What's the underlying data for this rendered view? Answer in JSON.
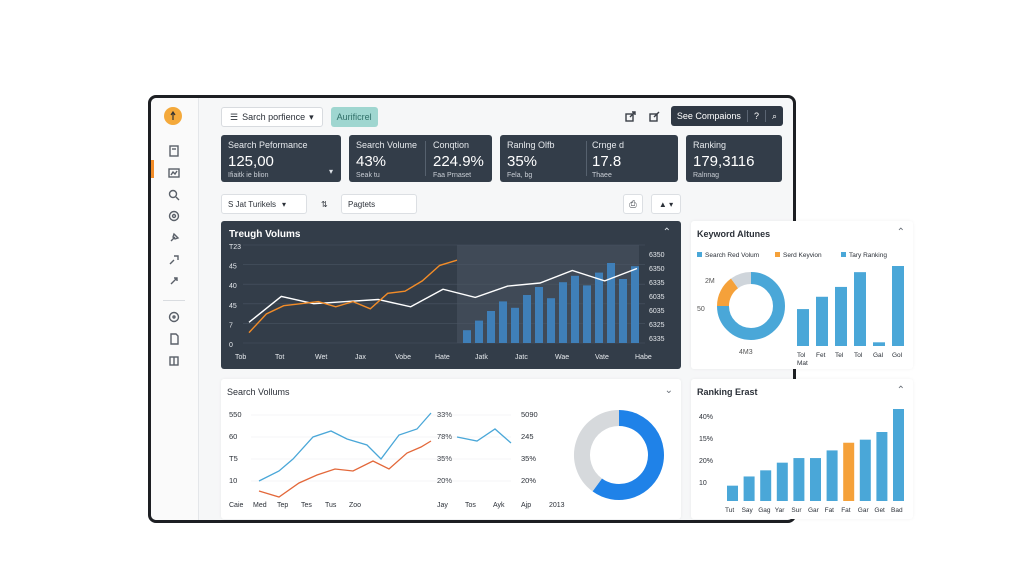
{
  "topbar": {
    "dropdown_label": "Sarch porfience",
    "pill_label": "Aurificrel",
    "compare_label": "See Compaions",
    "help_label": "?"
  },
  "kpis": [
    {
      "label": "Search Peformance",
      "value": "125,00",
      "sub": "Ifiaitk ie blion"
    },
    {
      "label": "Search Volume",
      "value": "43%",
      "sub": "Seak tu"
    },
    {
      "label": "Conqtion",
      "value": "224.9%",
      "sub": "Faa Prnaset"
    },
    {
      "label": "Ranlng Olfb",
      "value": "35%",
      "sub": "Fela, bg"
    },
    {
      "label": "Crnge d",
      "value": "17.8",
      "sub": "Thaee"
    },
    {
      "label": "Ranking",
      "value": "179,3116",
      "sub": "Ralnnag"
    }
  ],
  "filters": {
    "dropdown_label": "S  Jat Turikels",
    "button_label": "Pagtets"
  },
  "trend": {
    "title": "Treugh Volums",
    "y_left": [
      "T23",
      "45",
      "40",
      "45",
      "7",
      "0"
    ],
    "y_right": [
      "6350",
      "6350",
      "6335",
      "6035",
      "6035",
      "6325",
      "6335"
    ],
    "x_labels": [
      "Tob",
      "Tot",
      "Wet",
      "Jax",
      "Vobe",
      "Hate",
      "Jatk",
      "Jatc",
      "Wae",
      "Vate",
      "Habe"
    ]
  },
  "keyword": {
    "title": "Keyword Altunes",
    "legend": [
      "Search Red Volum",
      "Serd Keyvion",
      "Tary Ranking"
    ],
    "donut_labels": [
      "2M",
      "50",
      "4M3"
    ],
    "bar_labels": [
      "Tol",
      "Fet",
      "Tel",
      "Tol",
      "Gal",
      "Gol"
    ],
    "bar_sub": "Mat"
  },
  "volumes": {
    "title": "Search Vollums",
    "y_left": [
      "550",
      "60",
      "T5",
      "10"
    ],
    "x_left": [
      "Caie",
      "Med",
      "Tep",
      "Tes",
      "Tus",
      "Zoo"
    ],
    "y_mid": [
      "33%",
      "78%",
      "35%",
      "20%"
    ],
    "y_mid2": [
      "5090",
      "245",
      "35%",
      "20%"
    ],
    "x_mid": [
      "Jay",
      "Tos",
      "Ayk",
      "Ajp",
      "2013"
    ]
  },
  "ranking_east": {
    "title": "Ranking Erast",
    "y_labels": [
      "40%",
      "15%",
      "20%",
      "10"
    ],
    "x_labels": [
      "Tut",
      "Say",
      "Gag",
      "Yar",
      "Sur",
      "Gar",
      "Fat",
      "Fat",
      "Gar",
      "Get",
      "Bad"
    ]
  },
  "chart_data": [
    {
      "type": "line",
      "title": "Treugh Volums",
      "series": [
        {
          "name": "white",
          "values": [
            20,
            45,
            38,
            40,
            42,
            35,
            52,
            44,
            55,
            58,
            70,
            60,
            72
          ]
        },
        {
          "name": "orange",
          "values": [
            10,
            28,
            36,
            38,
            40,
            35,
            40,
            33,
            48,
            50,
            60,
            75,
            80
          ]
        }
      ]
    },
    {
      "type": "bar",
      "title": "Keyword Altunes",
      "categories": [
        "Tol",
        "Fet",
        "Tel",
        "Tol",
        "Gal",
        "Gol"
      ],
      "values": [
        30,
        40,
        48,
        60,
        3,
        65
      ]
    },
    {
      "type": "pie",
      "title": "Search Vollums donut",
      "values": [
        40,
        60
      ]
    },
    {
      "type": "bar",
      "title": "Ranking Erast",
      "categories": [
        "Tut",
        "Say",
        "Gag",
        "Yar",
        "Sur",
        "Gar",
        "Fat",
        "Fat",
        "Gar",
        "Get",
        "Bad"
      ],
      "values": [
        10,
        16,
        20,
        25,
        28,
        28,
        33,
        38,
        40,
        45,
        60
      ],
      "highlight_index": 7,
      "colors": {
        "bar": "#4aa7d8",
        "highlight": "#f5a13a"
      }
    }
  ],
  "colors": {
    "accent": "#f28c28",
    "blue": "#4aa7d8",
    "dark": "#333d49",
    "donut_blue": "#1f82e8"
  }
}
